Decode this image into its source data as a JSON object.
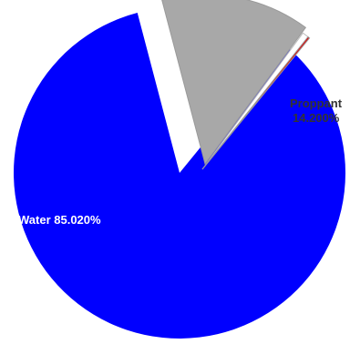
{
  "chart_data": {
    "type": "pie",
    "slices": [
      {
        "name": "Water",
        "value": 85.02,
        "label": "Water 85.020%",
        "color": "#0000ff"
      },
      {
        "name": "Proppant",
        "value": 14.2,
        "label_line1": "Proppant",
        "label_line2": "14.200%",
        "color": "#a8a8a8"
      },
      {
        "name": "",
        "value": 0.6,
        "color": "#ffffff"
      },
      {
        "name": "",
        "value": 0.18,
        "color": "#e00000"
      }
    ],
    "exploded": [
      "Proppant"
    ],
    "legend": "none"
  }
}
